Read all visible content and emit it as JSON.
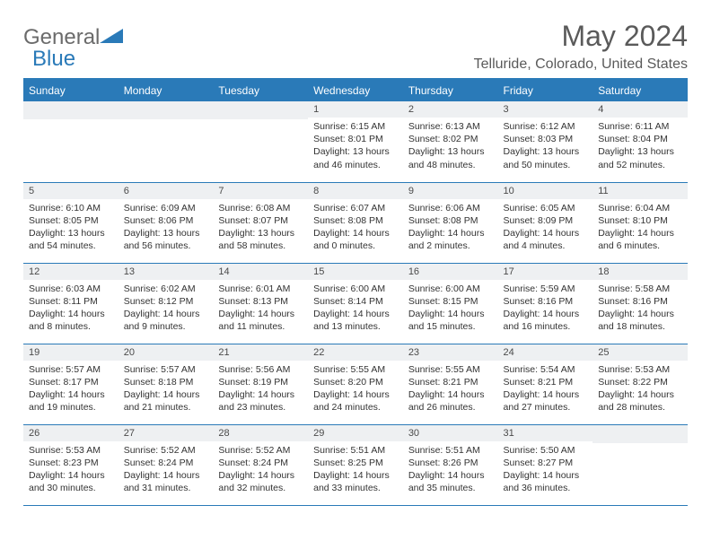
{
  "brand": {
    "general": "General",
    "blue": "Blue"
  },
  "title": "May 2024",
  "location": "Telluride, Colorado, United States",
  "header_color": "#2a7ab8",
  "daynum_bg": "#eef0f2",
  "text_color": "#333333",
  "weekdays": [
    "Sunday",
    "Monday",
    "Tuesday",
    "Wednesday",
    "Thursday",
    "Friday",
    "Saturday"
  ],
  "weeks": [
    [
      null,
      null,
      null,
      {
        "n": "1",
        "sr": "6:15 AM",
        "ss": "8:01 PM",
        "dl": "13 hours and 46 minutes."
      },
      {
        "n": "2",
        "sr": "6:13 AM",
        "ss": "8:02 PM",
        "dl": "13 hours and 48 minutes."
      },
      {
        "n": "3",
        "sr": "6:12 AM",
        "ss": "8:03 PM",
        "dl": "13 hours and 50 minutes."
      },
      {
        "n": "4",
        "sr": "6:11 AM",
        "ss": "8:04 PM",
        "dl": "13 hours and 52 minutes."
      }
    ],
    [
      {
        "n": "5",
        "sr": "6:10 AM",
        "ss": "8:05 PM",
        "dl": "13 hours and 54 minutes."
      },
      {
        "n": "6",
        "sr": "6:09 AM",
        "ss": "8:06 PM",
        "dl": "13 hours and 56 minutes."
      },
      {
        "n": "7",
        "sr": "6:08 AM",
        "ss": "8:07 PM",
        "dl": "13 hours and 58 minutes."
      },
      {
        "n": "8",
        "sr": "6:07 AM",
        "ss": "8:08 PM",
        "dl": "14 hours and 0 minutes."
      },
      {
        "n": "9",
        "sr": "6:06 AM",
        "ss": "8:08 PM",
        "dl": "14 hours and 2 minutes."
      },
      {
        "n": "10",
        "sr": "6:05 AM",
        "ss": "8:09 PM",
        "dl": "14 hours and 4 minutes."
      },
      {
        "n": "11",
        "sr": "6:04 AM",
        "ss": "8:10 PM",
        "dl": "14 hours and 6 minutes."
      }
    ],
    [
      {
        "n": "12",
        "sr": "6:03 AM",
        "ss": "8:11 PM",
        "dl": "14 hours and 8 minutes."
      },
      {
        "n": "13",
        "sr": "6:02 AM",
        "ss": "8:12 PM",
        "dl": "14 hours and 9 minutes."
      },
      {
        "n": "14",
        "sr": "6:01 AM",
        "ss": "8:13 PM",
        "dl": "14 hours and 11 minutes."
      },
      {
        "n": "15",
        "sr": "6:00 AM",
        "ss": "8:14 PM",
        "dl": "14 hours and 13 minutes."
      },
      {
        "n": "16",
        "sr": "6:00 AM",
        "ss": "8:15 PM",
        "dl": "14 hours and 15 minutes."
      },
      {
        "n": "17",
        "sr": "5:59 AM",
        "ss": "8:16 PM",
        "dl": "14 hours and 16 minutes."
      },
      {
        "n": "18",
        "sr": "5:58 AM",
        "ss": "8:16 PM",
        "dl": "14 hours and 18 minutes."
      }
    ],
    [
      {
        "n": "19",
        "sr": "5:57 AM",
        "ss": "8:17 PM",
        "dl": "14 hours and 19 minutes."
      },
      {
        "n": "20",
        "sr": "5:57 AM",
        "ss": "8:18 PM",
        "dl": "14 hours and 21 minutes."
      },
      {
        "n": "21",
        "sr": "5:56 AM",
        "ss": "8:19 PM",
        "dl": "14 hours and 23 minutes."
      },
      {
        "n": "22",
        "sr": "5:55 AM",
        "ss": "8:20 PM",
        "dl": "14 hours and 24 minutes."
      },
      {
        "n": "23",
        "sr": "5:55 AM",
        "ss": "8:21 PM",
        "dl": "14 hours and 26 minutes."
      },
      {
        "n": "24",
        "sr": "5:54 AM",
        "ss": "8:21 PM",
        "dl": "14 hours and 27 minutes."
      },
      {
        "n": "25",
        "sr": "5:53 AM",
        "ss": "8:22 PM",
        "dl": "14 hours and 28 minutes."
      }
    ],
    [
      {
        "n": "26",
        "sr": "5:53 AM",
        "ss": "8:23 PM",
        "dl": "14 hours and 30 minutes."
      },
      {
        "n": "27",
        "sr": "5:52 AM",
        "ss": "8:24 PM",
        "dl": "14 hours and 31 minutes."
      },
      {
        "n": "28",
        "sr": "5:52 AM",
        "ss": "8:24 PM",
        "dl": "14 hours and 32 minutes."
      },
      {
        "n": "29",
        "sr": "5:51 AM",
        "ss": "8:25 PM",
        "dl": "14 hours and 33 minutes."
      },
      {
        "n": "30",
        "sr": "5:51 AM",
        "ss": "8:26 PM",
        "dl": "14 hours and 35 minutes."
      },
      {
        "n": "31",
        "sr": "5:50 AM",
        "ss": "8:27 PM",
        "dl": "14 hours and 36 minutes."
      },
      null
    ]
  ],
  "labels": {
    "sunrise": "Sunrise:",
    "sunset": "Sunset:",
    "daylight": "Daylight:"
  }
}
